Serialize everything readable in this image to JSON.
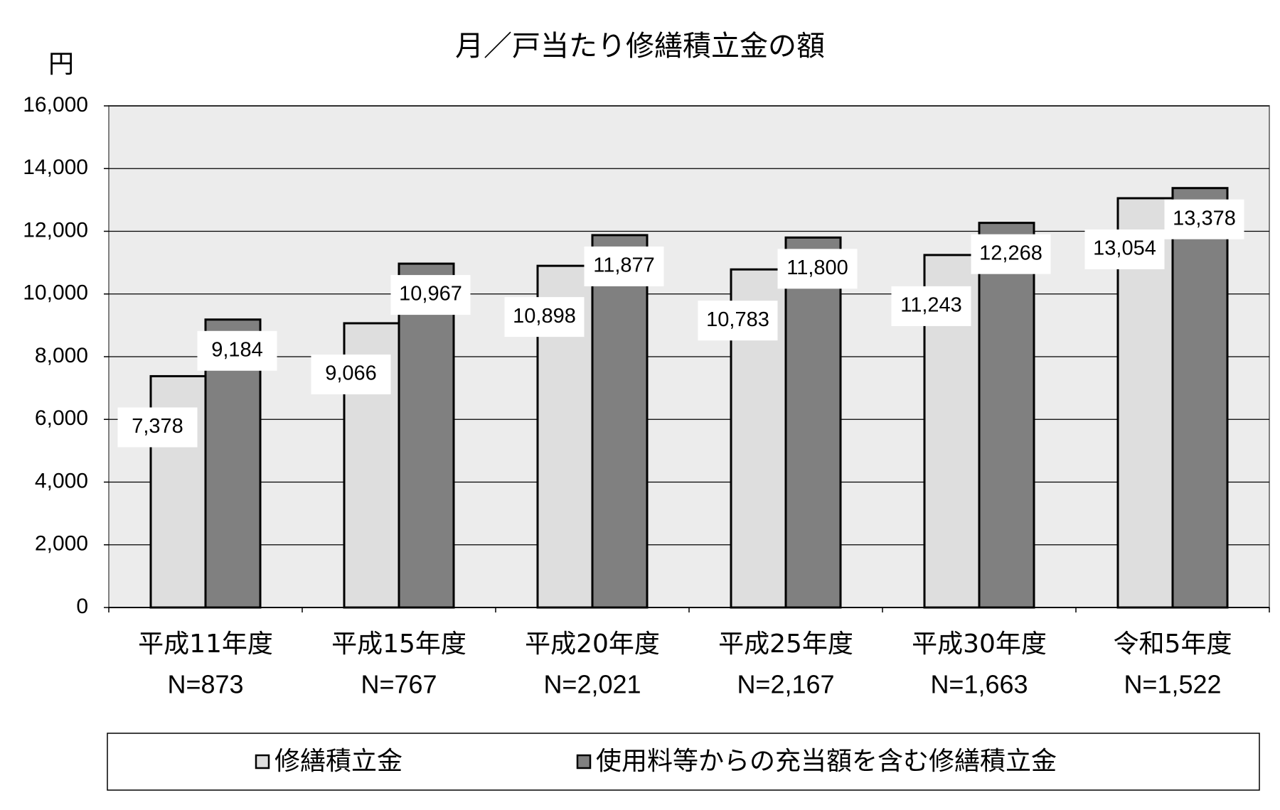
{
  "chart_data": {
    "type": "bar",
    "title": "月／戸当たり修繕積立金の額",
    "y_label": "円",
    "categories": [
      "平成11年度",
      "平成15年度",
      "平成20年度",
      "平成25年度",
      "平成30年度",
      "令和5年度"
    ],
    "category_notes": [
      "N=873",
      "N=767",
      "N=2,021",
      "N=2,167",
      "N=1,663",
      "N=1,522"
    ],
    "series": [
      {
        "name": "修繕積立金",
        "color": "#dedede",
        "values": [
          7378,
          9066,
          10898,
          10783,
          11243,
          13054
        ],
        "value_labels": [
          "7,378",
          "9,066",
          "10,898",
          "10,783",
          "11,243",
          "13,054"
        ]
      },
      {
        "name": "使用料等からの充当額を含む修繕積立金",
        "color": "#808080",
        "values": [
          9184,
          10967,
          11877,
          11800,
          12268,
          13378
        ],
        "value_labels": [
          "9,184",
          "10,967",
          "11,877",
          "11,800",
          "12,268",
          "13,378"
        ]
      }
    ],
    "ylim": [
      0,
      16000
    ],
    "yticks": [
      {
        "value": 0,
        "label": "0"
      },
      {
        "value": 2000,
        "label": "2,000"
      },
      {
        "value": 4000,
        "label": "4,000"
      },
      {
        "value": 6000,
        "label": "6,000"
      },
      {
        "value": 8000,
        "label": "8,000"
      },
      {
        "value": 10000,
        "label": "10,000"
      },
      {
        "value": 12000,
        "label": "12,000"
      },
      {
        "value": 14000,
        "label": "14,000"
      },
      {
        "value": 16000,
        "label": "16,000"
      }
    ],
    "grid": true,
    "legend": "bottom"
  }
}
